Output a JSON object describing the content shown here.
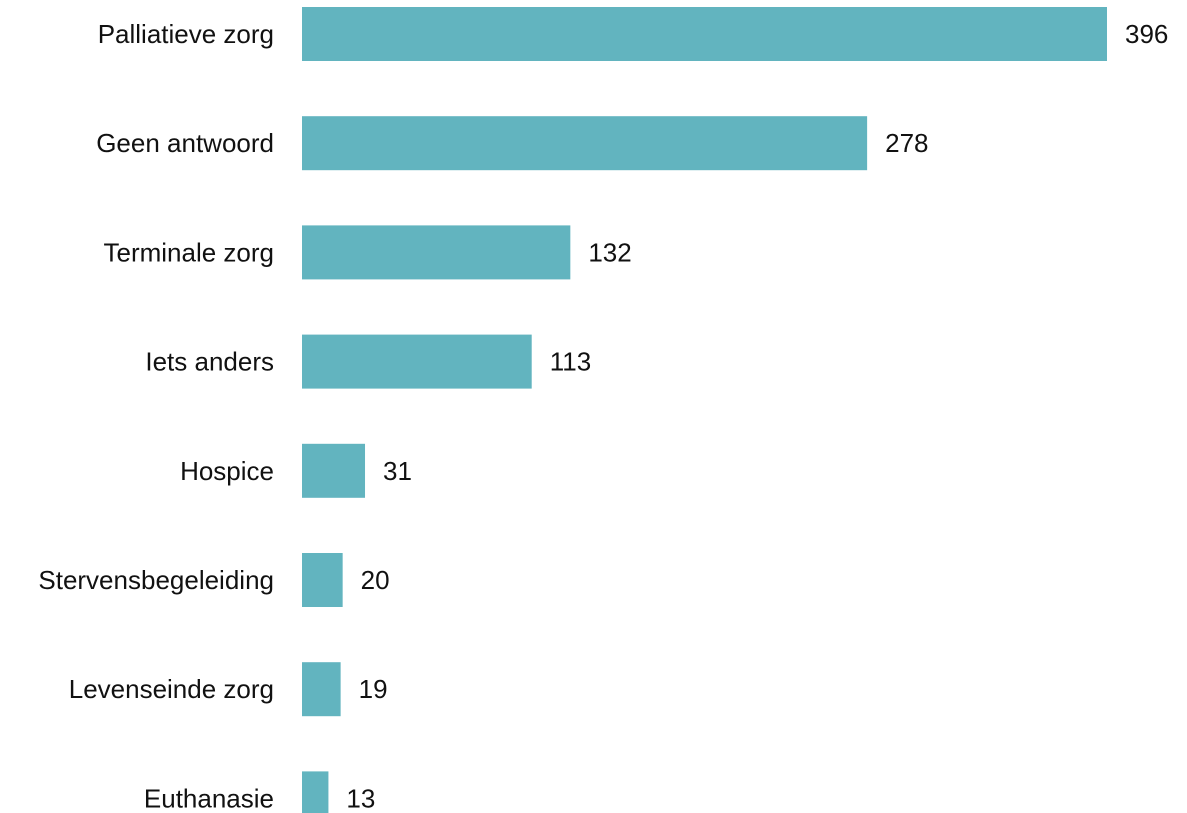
{
  "chart_data": {
    "type": "bar",
    "orientation": "horizontal",
    "categories": [
      "Palliatieve zorg",
      "Geen antwoord",
      "Terminale zorg",
      "Iets anders",
      "Hospice",
      "Stervensbegeleiding",
      "Levenseinde zorg",
      "Euthanasie"
    ],
    "values": [
      396,
      278,
      132,
      113,
      31,
      20,
      19,
      13
    ],
    "value_labels": [
      "396",
      "278",
      "132",
      "113",
      "31",
      "20",
      "19",
      "13"
    ],
    "title": "",
    "xlabel": "",
    "ylabel": "",
    "xlim": [
      0,
      396
    ],
    "grid": false,
    "legend": "none",
    "bar_color": "#62b4bf"
  }
}
